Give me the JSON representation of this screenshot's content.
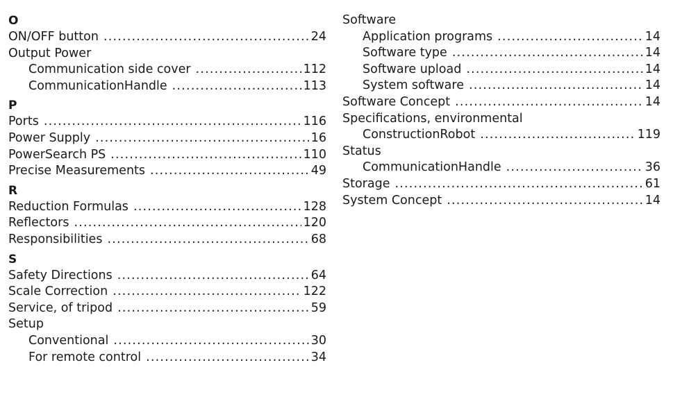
{
  "left": {
    "sections": [
      {
        "letter": "O",
        "entries": [
          {
            "label": "ON/OFF button",
            "page": "24",
            "sub": false
          },
          {
            "label": "Output Power",
            "page": "",
            "sub": false
          },
          {
            "label": "Communication side cover",
            "page": "112",
            "sub": true
          },
          {
            "label": "CommunicationHandle",
            "page": "113",
            "sub": true
          }
        ]
      },
      {
        "letter": "P",
        "entries": [
          {
            "label": "Ports",
            "page": "116",
            "sub": false
          },
          {
            "label": "Power Supply",
            "page": "16",
            "sub": false
          },
          {
            "label": "PowerSearch PS",
            "page": "110",
            "sub": false
          },
          {
            "label": "Precise Measurements",
            "page": "49",
            "sub": false
          }
        ]
      },
      {
        "letter": "R",
        "entries": [
          {
            "label": "Reduction Formulas",
            "page": "128",
            "sub": false
          },
          {
            "label": "Reflectors",
            "page": "120",
            "sub": false
          },
          {
            "label": "Responsibilities",
            "page": "68",
            "sub": false
          }
        ]
      },
      {
        "letter": "S",
        "entries": [
          {
            "label": "Safety Directions",
            "page": "64",
            "sub": false
          },
          {
            "label": "Scale Correction",
            "page": "122",
            "sub": false
          },
          {
            "label": "Service, of tripod",
            "page": "59",
            "sub": false
          },
          {
            "label": "Setup",
            "page": "",
            "sub": false
          },
          {
            "label": "Conventional",
            "page": "30",
            "sub": true
          },
          {
            "label": "For remote control",
            "page": "34",
            "sub": true
          }
        ]
      }
    ]
  },
  "right": {
    "entries": [
      {
        "label": "Software",
        "page": "",
        "sub": false
      },
      {
        "label": "Application programs",
        "page": "14",
        "sub": true
      },
      {
        "label": "Software type",
        "page": "14",
        "sub": true
      },
      {
        "label": "Software upload",
        "page": "14",
        "sub": true
      },
      {
        "label": "System software",
        "page": "14",
        "sub": true
      },
      {
        "label": "Software Concept",
        "page": "14",
        "sub": false
      },
      {
        "label": "Specifications, environmental",
        "page": "",
        "sub": false
      },
      {
        "label": "ConstructionRobot",
        "page": "119",
        "sub": true
      },
      {
        "label": "Status",
        "page": "",
        "sub": false
      },
      {
        "label": "CommunicationHandle",
        "page": "36",
        "sub": true
      },
      {
        "label": "Storage",
        "page": "61",
        "sub": false
      },
      {
        "label": "System Concept",
        "page": "14",
        "sub": false
      }
    ]
  }
}
